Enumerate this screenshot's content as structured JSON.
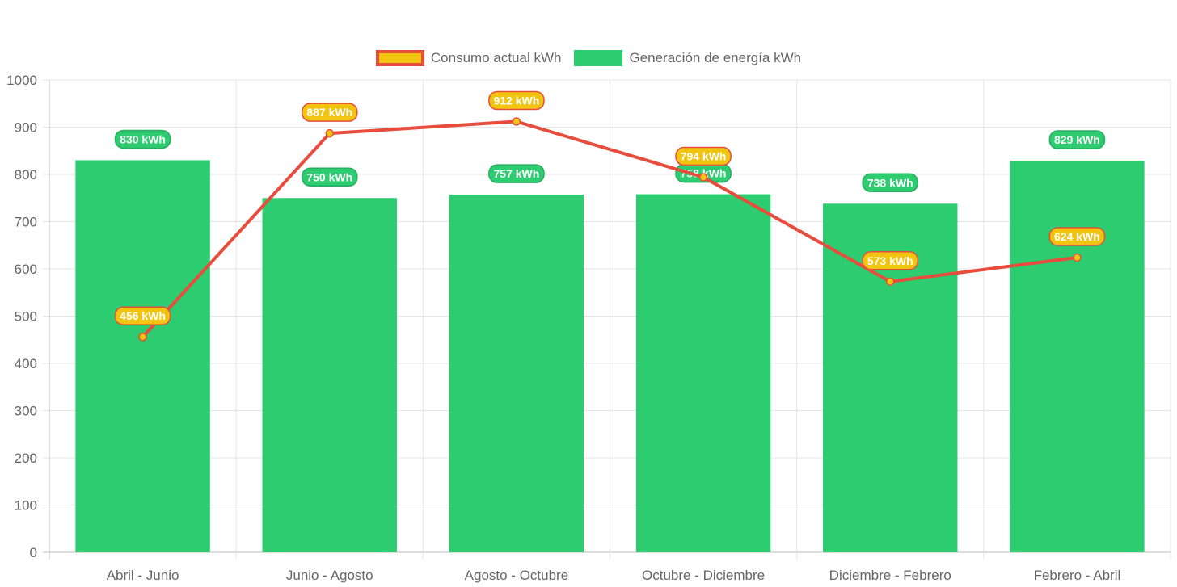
{
  "chart_data": {
    "type": "bar",
    "categories": [
      "Abril - Junio",
      "Junio - Agosto",
      "Agosto - Octubre",
      "Octubre - Diciembre",
      "Diciembre - Febrero",
      "Febrero - Abril"
    ],
    "series": [
      {
        "name": "Consumo actual kWh",
        "type": "line",
        "values": [
          456,
          887,
          912,
          794,
          573,
          624
        ],
        "labels": [
          "456 kWh",
          "887 kWh",
          "912 kWh",
          "794 kWh",
          "573 kWh",
          "624 kWh"
        ],
        "color": "#e74c3c",
        "fill": "#f1c40f"
      },
      {
        "name": "Generación de energía kWh",
        "type": "bar",
        "values": [
          830,
          750,
          757,
          758,
          738,
          829
        ],
        "labels": [
          "830 kWh",
          "750 kWh",
          "757 kWh",
          "758 kWh",
          "738 kWh",
          "829 kWh"
        ],
        "color": "#2ecc71",
        "border": "#27ae60"
      }
    ],
    "ylim": [
      0,
      1000
    ],
    "yticks": [
      "0",
      "100",
      "200",
      "300",
      "400",
      "500",
      "600",
      "700",
      "800",
      "900",
      "1000"
    ],
    "grid": true,
    "legend_position": "top"
  }
}
